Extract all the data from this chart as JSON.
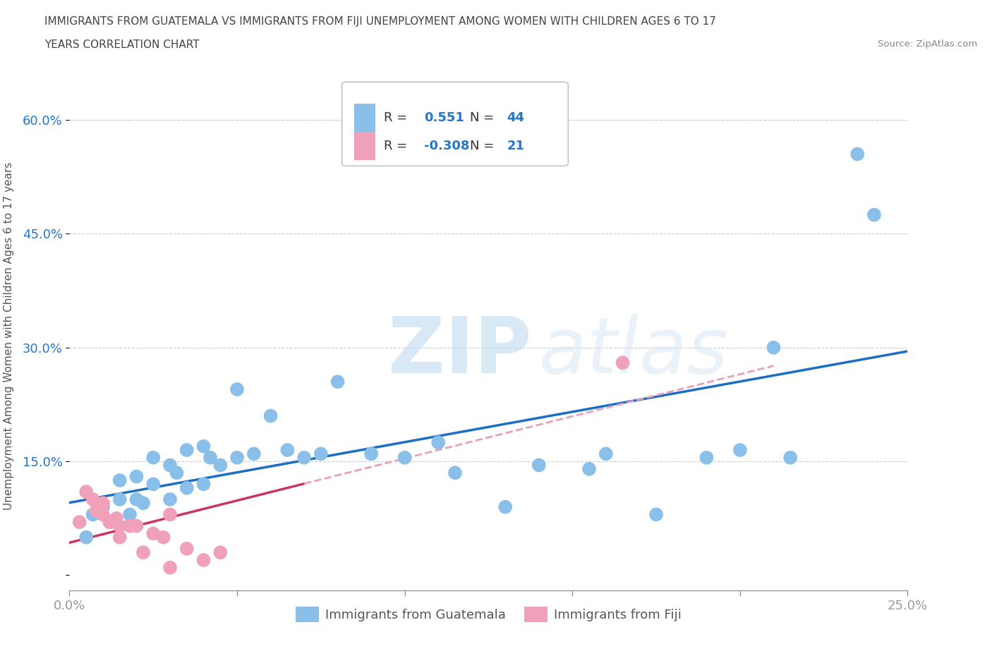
{
  "title_line1": "IMMIGRANTS FROM GUATEMALA VS IMMIGRANTS FROM FIJI UNEMPLOYMENT AMONG WOMEN WITH CHILDREN AGES 6 TO 17",
  "title_line2": "YEARS CORRELATION CHART",
  "source": "Source: ZipAtlas.com",
  "ylabel": "Unemployment Among Women with Children Ages 6 to 17 years",
  "xlim": [
    0.0,
    0.25
  ],
  "ylim": [
    -0.02,
    0.65
  ],
  "x_ticks": [
    0.0,
    0.05,
    0.1,
    0.15,
    0.2,
    0.25
  ],
  "y_ticks": [
    0.0,
    0.15,
    0.3,
    0.45,
    0.6
  ],
  "guatemala_color": "#89bfe8",
  "fiji_color": "#f0a0b8",
  "guatemala_line_color": "#1a6fc4",
  "fiji_line_color": "#cc3366",
  "fiji_line_dash_color": "#e8a0b8",
  "r_guatemala": "0.551",
  "n_guatemala": "44",
  "r_fiji": "-0.308",
  "n_fiji": "21",
  "watermark_zip": "ZIP",
  "watermark_atlas": "atlas",
  "background_color": "#ffffff",
  "grid_color": "#cccccc",
  "guatemala_x": [
    0.005,
    0.007,
    0.01,
    0.012,
    0.015,
    0.015,
    0.018,
    0.02,
    0.02,
    0.022,
    0.025,
    0.025,
    0.03,
    0.03,
    0.032,
    0.035,
    0.035,
    0.04,
    0.04,
    0.042,
    0.045,
    0.05,
    0.05,
    0.055,
    0.06,
    0.065,
    0.07,
    0.075,
    0.08,
    0.09,
    0.1,
    0.11,
    0.115,
    0.13,
    0.14,
    0.155,
    0.16,
    0.175,
    0.19,
    0.2,
    0.21,
    0.215,
    0.235,
    0.24
  ],
  "guatemala_y": [
    0.05,
    0.08,
    0.09,
    0.07,
    0.1,
    0.125,
    0.08,
    0.1,
    0.13,
    0.095,
    0.12,
    0.155,
    0.1,
    0.145,
    0.135,
    0.115,
    0.165,
    0.12,
    0.17,
    0.155,
    0.145,
    0.155,
    0.245,
    0.16,
    0.21,
    0.165,
    0.155,
    0.16,
    0.255,
    0.16,
    0.155,
    0.175,
    0.135,
    0.09,
    0.145,
    0.14,
    0.16,
    0.08,
    0.155,
    0.165,
    0.3,
    0.155,
    0.555,
    0.475
  ],
  "fiji_x": [
    0.003,
    0.005,
    0.007,
    0.008,
    0.01,
    0.01,
    0.012,
    0.014,
    0.015,
    0.015,
    0.018,
    0.02,
    0.022,
    0.025,
    0.028,
    0.03,
    0.03,
    0.035,
    0.04,
    0.045,
    0.165
  ],
  "fiji_y": [
    0.07,
    0.11,
    0.1,
    0.085,
    0.095,
    0.08,
    0.07,
    0.075,
    0.065,
    0.05,
    0.065,
    0.065,
    0.03,
    0.055,
    0.05,
    0.01,
    0.08,
    0.035,
    0.02,
    0.03,
    0.28
  ]
}
